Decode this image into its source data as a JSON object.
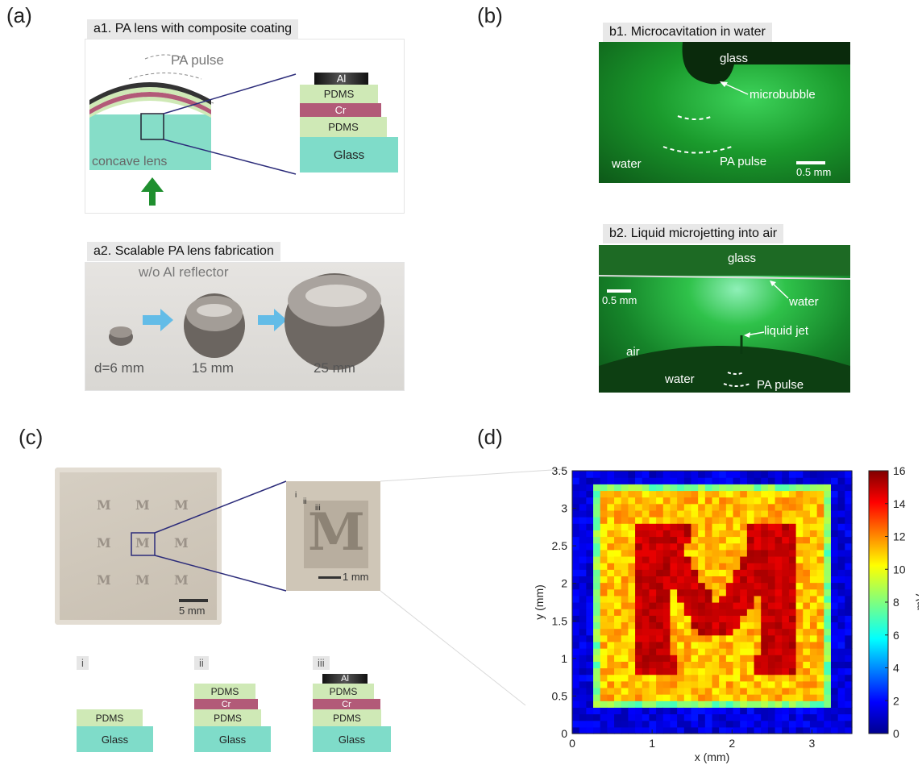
{
  "panels": {
    "a": {
      "label": "(a)",
      "a1": {
        "title": "a1. PA lens with composite coating",
        "pulse_label": "PA pulse",
        "lens_label": "concave lens",
        "stack": [
          "Al",
          "PDMS",
          "Cr",
          "PDMS",
          "Glass"
        ]
      },
      "a2": {
        "title": "a2. Scalable PA lens fabrication",
        "note": "w/o Al reflector",
        "sizes": [
          "d=6 mm",
          "15 mm",
          "25 mm"
        ]
      }
    },
    "b": {
      "label": "(b)",
      "b1": {
        "title": "b1. Microcavitation in water",
        "labels": {
          "glass": "glass",
          "microbubble": "microbubble",
          "water": "water",
          "pulse": "PA pulse",
          "scale": "0.5 mm"
        }
      },
      "b2": {
        "title": "b2. Liquid microjetting into air",
        "labels": {
          "glass": "glass",
          "water_top": "water",
          "scale": "0.5 mm",
          "jet": "liquid jet",
          "air": "air",
          "water_bottom": "water",
          "pulse": "PA pulse"
        }
      }
    },
    "c": {
      "label": "(c)",
      "scale_big": "5 mm",
      "scale_small": "1 mm",
      "region_labels": [
        "i",
        "ii",
        "iii"
      ],
      "stack_labels": [
        "i",
        "ii",
        "iii"
      ],
      "stack_i": [
        "PDMS",
        "Glass"
      ],
      "stack_ii": [
        "PDMS",
        "Cr",
        "PDMS",
        "Glass"
      ],
      "stack_iii": [
        "Al",
        "PDMS",
        "Cr",
        "PDMS",
        "Glass"
      ],
      "glyph": "M"
    },
    "d": {
      "label": "(d)"
    }
  },
  "chart_data": {
    "type": "heatmap",
    "title": "",
    "xlabel": "x (mm)",
    "ylabel": "y (mm)",
    "colorbar_label": "mV",
    "xlim": [
      0,
      3.5
    ],
    "ylim": [
      0,
      3.5
    ],
    "clim": [
      0,
      16
    ],
    "xticks": [
      0,
      1,
      2,
      3
    ],
    "yticks": [
      0,
      0.5,
      1,
      1.5,
      2,
      2.5,
      3,
      3.5
    ],
    "cbar_ticks": [
      0,
      2,
      4,
      6,
      8,
      10,
      12,
      14,
      16
    ],
    "colormap": "jet",
    "regions": [
      {
        "name": "background",
        "value_mV": 1.5,
        "extent_mm": {
          "x": [
            0,
            3.5
          ],
          "y": [
            0,
            3.5
          ]
        }
      },
      {
        "name": "coated square",
        "value_mV": 11,
        "extent_mm": {
          "x": [
            0.3,
            3.2
          ],
          "y": [
            0.35,
            3.3
          ]
        }
      },
      {
        "name": "letter M",
        "value_mV": 15.5
      }
    ]
  }
}
